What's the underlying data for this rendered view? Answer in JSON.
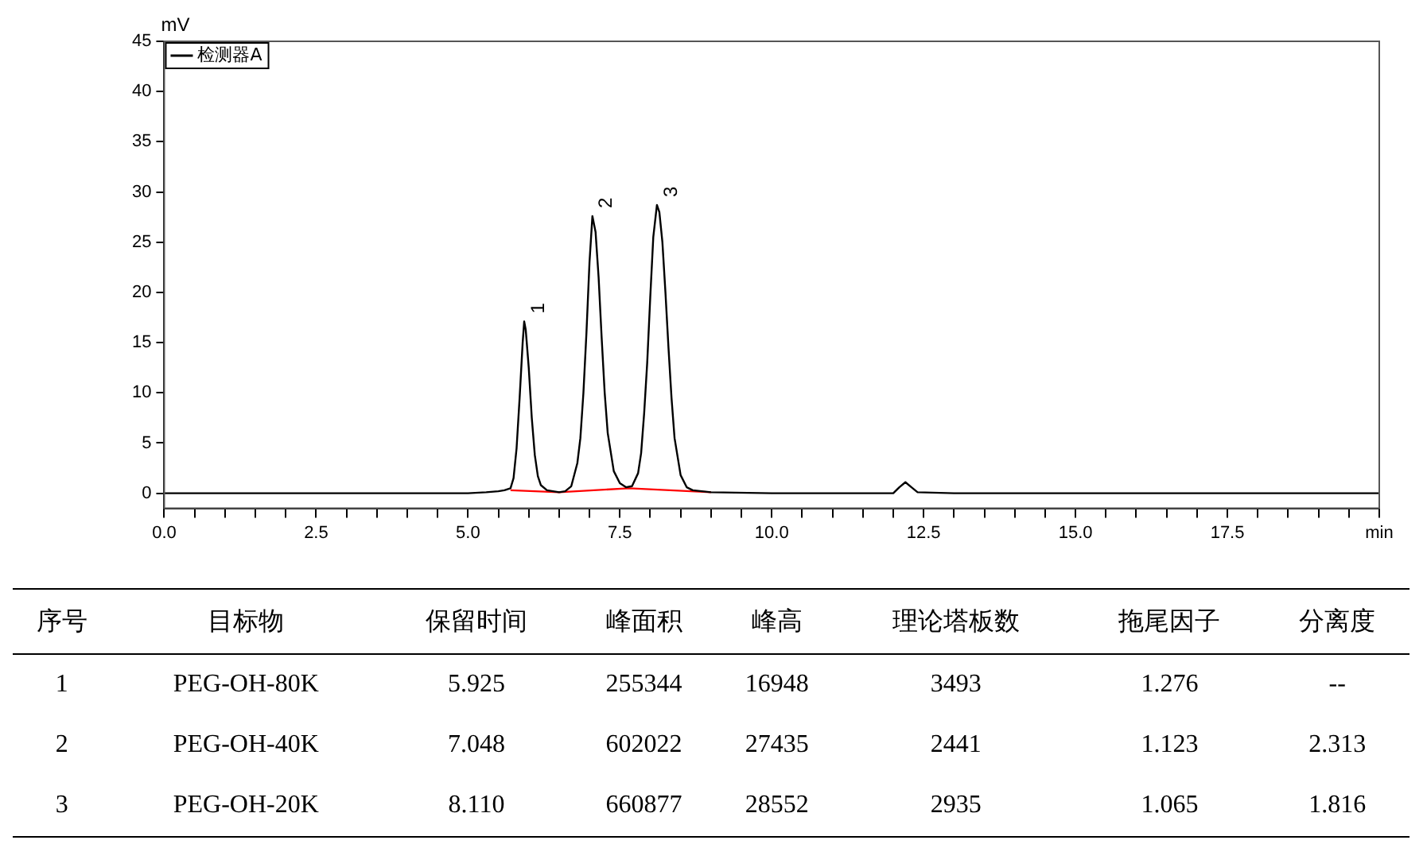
{
  "chart_data": [
    {
      "type": "line",
      "ylabel": "mV",
      "legend": "top left",
      "grid": false,
      "marker": "none",
      "line_style": "solid",
      "xlim": [
        0,
        20
      ],
      "ylim": [
        -1.5,
        45
      ],
      "xticks": [
        {
          "value": 0,
          "label": "0.0"
        },
        {
          "value": 0.5,
          "label": null
        },
        {
          "value": 1,
          "label": null
        },
        {
          "value": 1.5,
          "label": null
        },
        {
          "value": 2,
          "label": null
        },
        {
          "value": 2.5,
          "label": "2.5"
        },
        {
          "value": 3,
          "label": null
        },
        {
          "value": 3.5,
          "label": null
        },
        {
          "value": 4,
          "label": null
        },
        {
          "value": 4.5,
          "label": null
        },
        {
          "value": 5,
          "label": "5.0"
        },
        {
          "value": 5.5,
          "label": null
        },
        {
          "value": 6,
          "label": null
        },
        {
          "value": 6.5,
          "label": null
        },
        {
          "value": 7,
          "label": null
        },
        {
          "value": 7.5,
          "label": "7.5"
        },
        {
          "value": 8,
          "label": null
        },
        {
          "value": 8.5,
          "label": null
        },
        {
          "value": 9,
          "label": null
        },
        {
          "value": 9.5,
          "label": null
        },
        {
          "value": 10,
          "label": "10.0"
        },
        {
          "value": 10.5,
          "label": null
        },
        {
          "value": 11,
          "label": null
        },
        {
          "value": 11.5,
          "label": null
        },
        {
          "value": 12,
          "label": null
        },
        {
          "value": 12.5,
          "label": "12.5"
        },
        {
          "value": 13,
          "label": null
        },
        {
          "value": 13.5,
          "label": null
        },
        {
          "value": 14,
          "label": null
        },
        {
          "value": 14.5,
          "label": null
        },
        {
          "value": 15,
          "label": "15.0"
        },
        {
          "value": 15.5,
          "label": null
        },
        {
          "value": 16,
          "label": null
        },
        {
          "value": 16.5,
          "label": null
        },
        {
          "value": 17,
          "label": null
        },
        {
          "value": 17.5,
          "label": "17.5"
        },
        {
          "value": 18,
          "label": null
        },
        {
          "value": 18.5,
          "label": null
        },
        {
          "value": 19,
          "label": null
        },
        {
          "value": 19.5,
          "label": null
        },
        {
          "value": 20,
          "label": "min"
        }
      ],
      "yticks": [
        0,
        5,
        10,
        15,
        20,
        25,
        30,
        35,
        40,
        45
      ],
      "series": [
        {
          "name": "检测器A",
          "color": "#000000",
          "x": [
            0,
            2.5,
            5.0,
            5.3,
            5.5,
            5.6,
            5.7,
            5.75,
            5.8,
            5.85,
            5.9,
            5.925,
            5.95,
            6.0,
            6.05,
            6.1,
            6.15,
            6.2,
            6.3,
            6.5,
            6.6,
            6.7,
            6.8,
            6.85,
            6.9,
            6.95,
            7.0,
            7.048,
            7.1,
            7.15,
            7.2,
            7.25,
            7.3,
            7.4,
            7.5,
            7.6,
            7.7,
            7.8,
            7.85,
            7.9,
            7.95,
            8.0,
            8.05,
            8.11,
            8.15,
            8.2,
            8.25,
            8.3,
            8.35,
            8.4,
            8.5,
            8.6,
            8.7,
            9.0,
            10,
            12.0,
            12.1,
            12.2,
            12.3,
            12.4,
            13,
            20
          ],
          "values": [
            0,
            0,
            0,
            0.1,
            0.2,
            0.3,
            0.5,
            1.5,
            4.5,
            9.5,
            15,
            17.1,
            16.3,
            12.5,
            7.5,
            3.8,
            1.7,
            0.8,
            0.3,
            0.1,
            0.2,
            0.7,
            3,
            5.5,
            10,
            16,
            23,
            27.6,
            26,
            21.5,
            15.5,
            10,
            6,
            2.2,
            1,
            0.6,
            0.7,
            2,
            4,
            8,
            13,
            19.5,
            25.5,
            28.7,
            28,
            25,
            20,
            14.5,
            9.5,
            5.5,
            1.8,
            0.6,
            0.3,
            0.1,
            0,
            0,
            0.6,
            1.1,
            0.6,
            0.1,
            0,
            0
          ]
        },
        {
          "color": "#ff0000",
          "x": [
            5.7,
            6.5,
            7.65,
            9.0
          ],
          "values": [
            0.3,
            0.1,
            0.5,
            0.1
          ]
        }
      ],
      "annotations": [
        {
          "text": "1",
          "x": 5.925,
          "y": 17.1
        },
        {
          "text": "2",
          "x": 7.048,
          "y": 27.6
        },
        {
          "text": "3",
          "x": 8.11,
          "y": 28.7
        }
      ]
    },
    {
      "type": "other",
      "categories": [
        "序号",
        "目标物",
        "保留时间",
        "峰面积",
        "峰高",
        "理论塔板数",
        "拖尾因子",
        "分离度"
      ],
      "annotations": [
        "1",
        "PEG-OH-80K",
        "5.925",
        "255344",
        "16948",
        "3493",
        "1.276",
        "--",
        "2",
        "PEG-OH-40K",
        "7.048",
        "602022",
        "27435",
        "2441",
        "1.123",
        "2.313",
        "3",
        "PEG-OH-20K",
        "8.110",
        "660877",
        "28552",
        "2935",
        "1.065",
        "1.816"
      ]
    }
  ]
}
